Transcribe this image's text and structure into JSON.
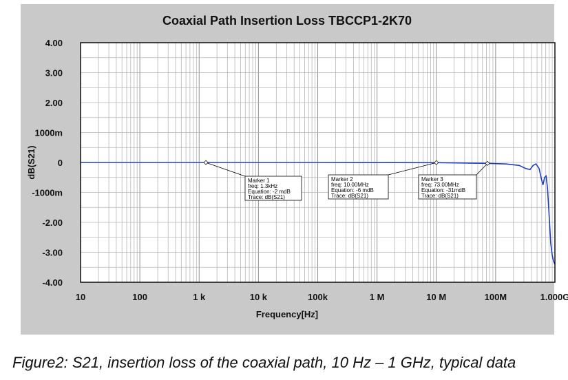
{
  "chart_data": {
    "type": "line",
    "title": "Coaxial Path Insertion Loss TBCCP1-2K70",
    "xlabel": "Frequency[Hz]",
    "ylabel": "dB(S21)",
    "xscale": "log",
    "xlim": [
      10,
      1000000000
    ],
    "ylim": [
      -4,
      4
    ],
    "x_tick_values": [
      10,
      100,
      1000,
      10000,
      100000,
      1000000,
      10000000,
      100000000,
      1000000000
    ],
    "x_tick_labels": [
      "10",
      "100",
      "1  k",
      "10 k",
      "100k",
      "1  M",
      "10 M",
      "100M",
      "1.000G"
    ],
    "y_tick_values": [
      4,
      3,
      2,
      1,
      0,
      -1,
      -2,
      -3,
      -4
    ],
    "y_tick_labels": [
      "4.00",
      "3.00",
      "2.00",
      "1000m",
      "0",
      "-1000m",
      "-2.00",
      "-3.00",
      "-4.00"
    ],
    "series": [
      {
        "name": "dB(S21)",
        "color": "#1f3fbf",
        "x": [
          10,
          1000,
          100000,
          10000000,
          73000000,
          150000000,
          250000000,
          320000000,
          380000000,
          430000000,
          480000000,
          540000000,
          590000000,
          630000000,
          670000000,
          710000000,
          750000000,
          800000000,
          850000000,
          900000000,
          950000000,
          1000000000
        ],
        "y": [
          0,
          0,
          0,
          -0.006,
          -0.031,
          -0.05,
          -0.1,
          -0.2,
          -0.24,
          -0.1,
          -0.05,
          -0.2,
          -0.55,
          -0.75,
          -0.5,
          -0.45,
          -0.85,
          -1.8,
          -2.7,
          -3.1,
          -3.3,
          -3.4
        ]
      }
    ],
    "markers": [
      {
        "x": 1300,
        "y": -0.002,
        "label": "Marker 1",
        "freq": "freq: 1.3kHz",
        "equation": "Equation: -2 mdB",
        "trace": "Trace: dB(S21)"
      },
      {
        "x": 10000000,
        "y": -0.006,
        "label": "Marker 2",
        "freq": "freq: 10.00MHz",
        "equation": "Equation: -6 mdB",
        "trace": "Trace: dB(S21)"
      },
      {
        "x": 73000000,
        "y": -0.031,
        "label": "Marker 3",
        "freq": "freq: 73.00MHz",
        "equation": "Equation: -31mdB",
        "trace": "Trace: dB(S21)"
      }
    ]
  },
  "caption": "Figure2: S21, insertion loss of the coaxial path, 10 Hz – 1 GHz, typical data"
}
